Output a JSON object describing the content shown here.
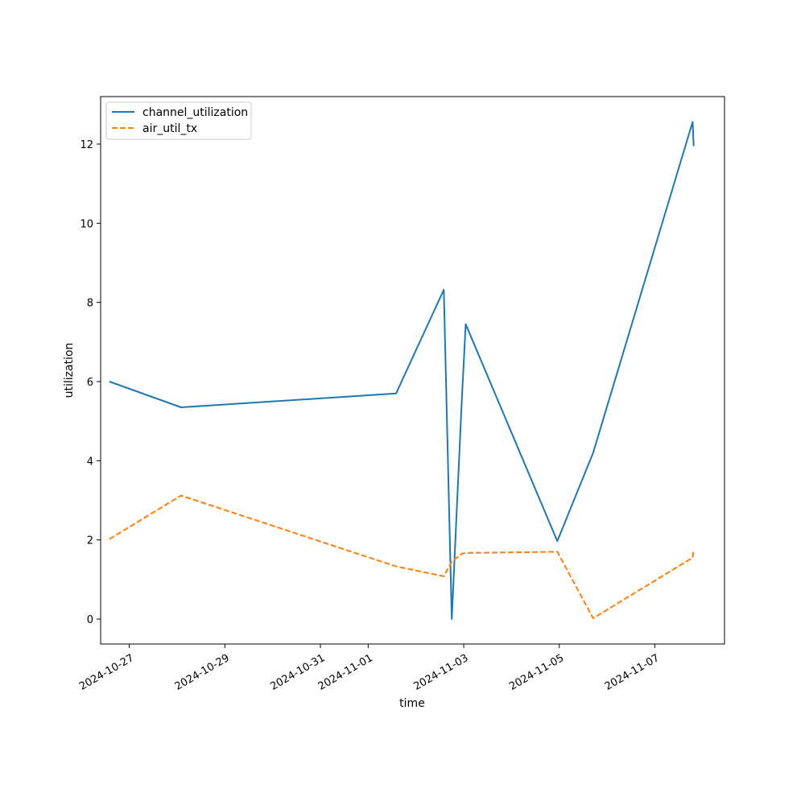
{
  "chart_data": {
    "type": "line",
    "title": "",
    "xlabel": "time",
    "ylabel": "utilization",
    "x_type": "date",
    "xlim": [
      "2024-10-26T09:36",
      "2024-11-08T11:00"
    ],
    "ylim": [
      -0.63,
      13.2
    ],
    "xticks": [
      "2024-10-27",
      "2024-10-29",
      "2024-10-31",
      "2024-11-01",
      "2024-11-03",
      "2024-11-05",
      "2024-11-07"
    ],
    "yticks": [
      0,
      2,
      4,
      6,
      8,
      10,
      12
    ],
    "grid": false,
    "legend": "upper-left",
    "series": [
      {
        "name": "channel_utilization",
        "color": "#1f77b4",
        "style": "solid",
        "points": [
          [
            "2024-10-26T14:00",
            6.0
          ],
          [
            "2024-10-28T02:00",
            5.35
          ],
          [
            "2024-11-01T14:00",
            5.7
          ],
          [
            "2024-11-02T14:00",
            8.32
          ],
          [
            "2024-11-02T18:00",
            0.0
          ],
          [
            "2024-11-02T23:00",
            5.5
          ],
          [
            "2024-11-03T01:00",
            7.45
          ],
          [
            "2024-11-04T23:00",
            1.97
          ],
          [
            "2024-11-05T17:00",
            4.2
          ],
          [
            "2024-11-07T19:00",
            12.56
          ],
          [
            "2024-11-07T19:30",
            11.95
          ]
        ]
      },
      {
        "name": "air_util_tx",
        "color": "#ff7f0e",
        "style": "dashed",
        "points": [
          [
            "2024-10-26T14:00",
            2.02
          ],
          [
            "2024-10-28T02:00",
            3.12
          ],
          [
            "2024-11-01T14:00",
            1.33
          ],
          [
            "2024-11-02T14:00",
            1.08
          ],
          [
            "2024-11-02T18:00",
            1.45
          ],
          [
            "2024-11-02T23:00",
            1.65
          ],
          [
            "2024-11-03T01:00",
            1.67
          ],
          [
            "2024-11-04T23:00",
            1.7
          ],
          [
            "2024-11-05T17:00",
            0.02
          ],
          [
            "2024-11-07T19:00",
            1.55
          ],
          [
            "2024-11-07T19:30",
            1.75
          ]
        ]
      }
    ]
  }
}
